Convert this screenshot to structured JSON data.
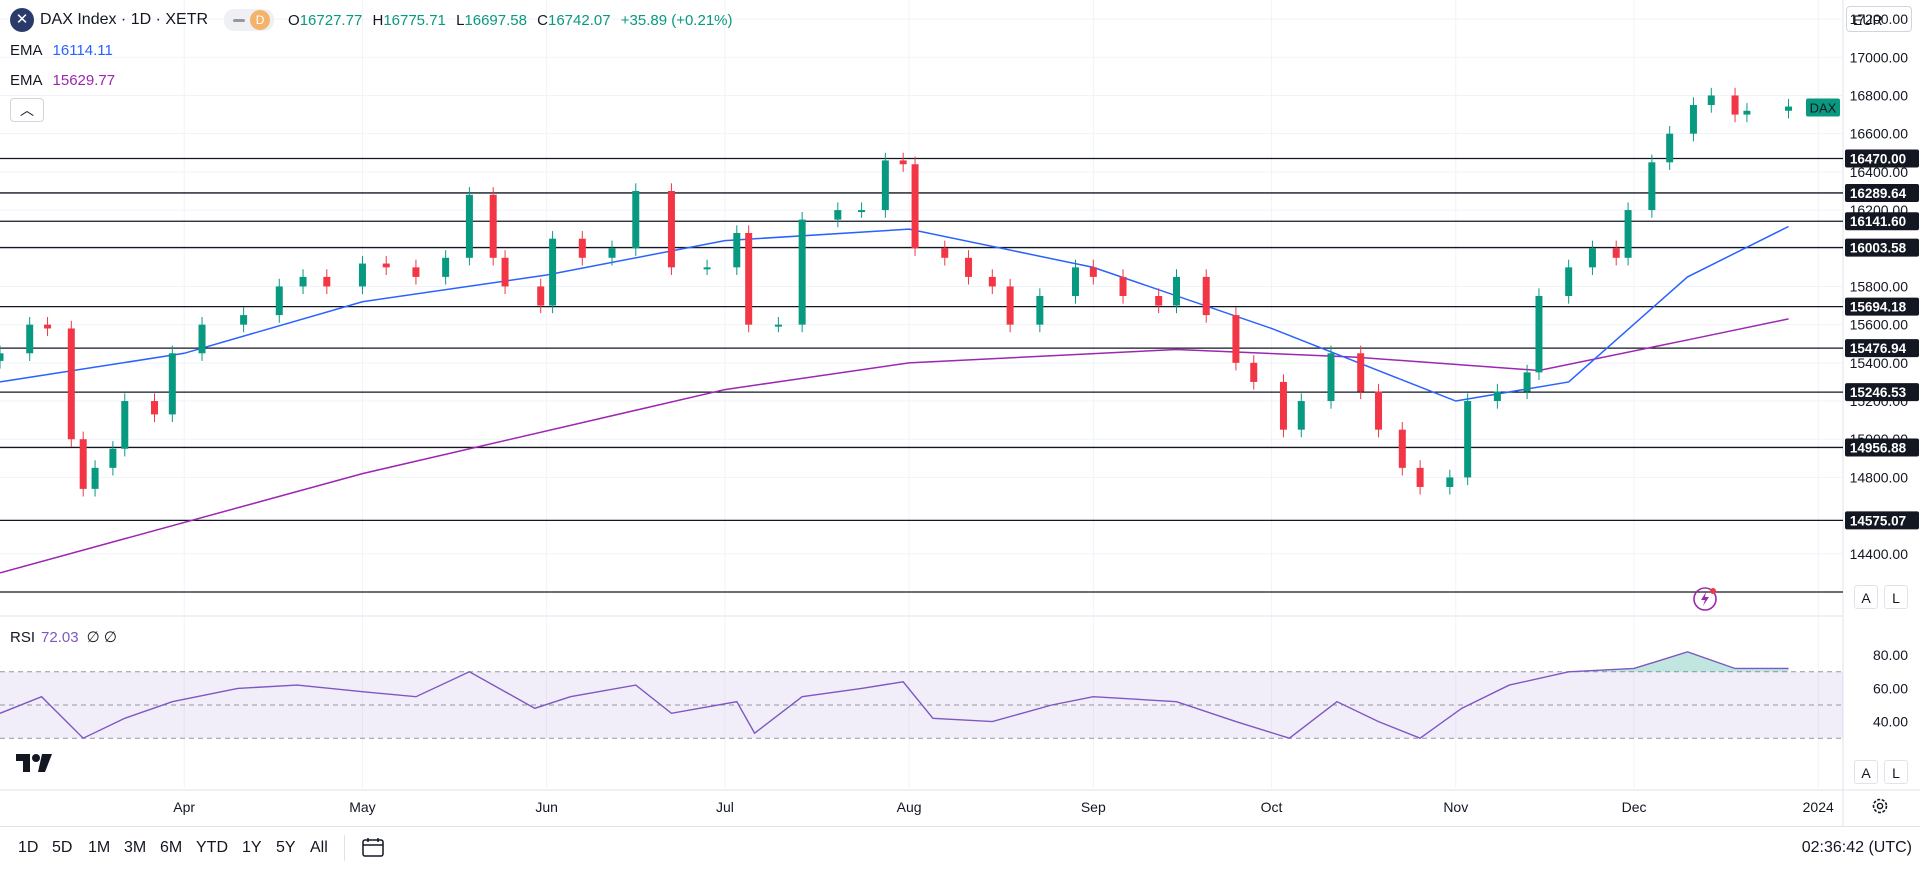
{
  "header": {
    "symbol": "DAX Index · 1D · XETR",
    "symbol_icon": "x-close-icon",
    "pill_letter": "D",
    "ohlc": {
      "o_label": "O",
      "o": "16727.77",
      "h_label": "H",
      "h": "16775.71",
      "l_label": "L",
      "l": "16697.58",
      "c_label": "C",
      "c": "16742.07",
      "change": "+35.89 (+0.21%)"
    }
  },
  "indicators": [
    {
      "label": "EMA",
      "value": "16114.11",
      "color": "#2962ff"
    },
    {
      "label": "EMA",
      "value": "15629.77",
      "color": "#9c27b0"
    }
  ],
  "rsi": {
    "label": "RSI",
    "value": "72.03",
    "extra1": "∅",
    "extra2": "∅"
  },
  "currency": "EUR",
  "axis_buttons": {
    "a": "A",
    "l": "L"
  },
  "price_tag": "DAX",
  "timeframes": [
    "1D",
    "5D",
    "1M",
    "3M",
    "6M",
    "YTD",
    "1Y",
    "5Y",
    "All"
  ],
  "clock": "02:36:42 (UTC)",
  "colors": {
    "up": "#089981",
    "down": "#f23645",
    "ema_fast": "#2962ff",
    "ema_slow": "#9c27b0",
    "rsi": "#7e57c2",
    "grid": "#f0f3fa"
  },
  "chart_data": [
    {
      "type": "candlestick",
      "title": "DAX Index · 1D · XETR",
      "ylim": [
        14200,
        17300
      ],
      "y_ticks": [
        "17200.00",
        "17000.00",
        "16800.00",
        "16600.00",
        "16400.00",
        "16200.00",
        "15800.00",
        "15600.00",
        "15400.00",
        "15200.00",
        "15000.00",
        "14800.00",
        "14400.00"
      ],
      "x_ticks": [
        "Apr",
        "May",
        "Jun",
        "Jul",
        "Aug",
        "Sep",
        "Oct",
        "Nov",
        "Dec",
        "2024"
      ],
      "x_range": [
        "2023-03-01",
        "2024-01-05"
      ],
      "horizontal_levels": [
        "16470.00",
        "16289.64",
        "16141.60",
        "16003.58",
        "15694.18",
        "15476.94",
        "15246.53",
        "14956.88",
        "14575.07"
      ],
      "bottom_line": 14200,
      "closes": [
        [
          "2023-03-01",
          15450
        ],
        [
          "2023-03-06",
          15600
        ],
        [
          "2023-03-09",
          15580
        ],
        [
          "2023-03-13",
          15000
        ],
        [
          "2023-03-15",
          14740
        ],
        [
          "2023-03-17",
          14850
        ],
        [
          "2023-03-20",
          14950
        ],
        [
          "2023-03-22",
          15200
        ],
        [
          "2023-03-27",
          15130
        ],
        [
          "2023-03-30",
          15450
        ],
        [
          "2023-04-04",
          15600
        ],
        [
          "2023-04-11",
          15650
        ],
        [
          "2023-04-17",
          15800
        ],
        [
          "2023-04-21",
          15850
        ],
        [
          "2023-04-25",
          15800
        ],
        [
          "2023-05-01",
          15920
        ],
        [
          "2023-05-05",
          15900
        ],
        [
          "2023-05-10",
          15850
        ],
        [
          "2023-05-15",
          15950
        ],
        [
          "2023-05-19",
          16280
        ],
        [
          "2023-05-23",
          15950
        ],
        [
          "2023-05-25",
          15800
        ],
        [
          "2023-05-31",
          15700
        ],
        [
          "2023-06-02",
          16050
        ],
        [
          "2023-06-07",
          15950
        ],
        [
          "2023-06-12",
          16000
        ],
        [
          "2023-06-16",
          16300
        ],
        [
          "2023-06-22",
          15900
        ],
        [
          "2023-06-28",
          15900
        ],
        [
          "2023-07-03",
          16080
        ],
        [
          "2023-07-05",
          15600
        ],
        [
          "2023-07-10",
          15600
        ],
        [
          "2023-07-14",
          16150
        ],
        [
          "2023-07-20",
          16200
        ],
        [
          "2023-07-24",
          16200
        ],
        [
          "2023-07-28",
          16460
        ],
        [
          "2023-07-31",
          16440
        ],
        [
          "2023-08-02",
          16000
        ],
        [
          "2023-08-07",
          15950
        ],
        [
          "2023-08-11",
          15850
        ],
        [
          "2023-08-15",
          15800
        ],
        [
          "2023-08-18",
          15600
        ],
        [
          "2023-08-23",
          15750
        ],
        [
          "2023-08-29",
          15900
        ],
        [
          "2023-09-01",
          15850
        ],
        [
          "2023-09-06",
          15750
        ],
        [
          "2023-09-12",
          15700
        ],
        [
          "2023-09-15",
          15850
        ],
        [
          "2023-09-20",
          15650
        ],
        [
          "2023-09-25",
          15400
        ],
        [
          "2023-09-28",
          15300
        ],
        [
          "2023-10-03",
          15050
        ],
        [
          "2023-10-06",
          15200
        ],
        [
          "2023-10-11",
          15450
        ],
        [
          "2023-10-16",
          15250
        ],
        [
          "2023-10-19",
          15050
        ],
        [
          "2023-10-23",
          14850
        ],
        [
          "2023-10-26",
          14750
        ],
        [
          "2023-10-31",
          14800
        ],
        [
          "2023-11-03",
          15200
        ],
        [
          "2023-11-08",
          15250
        ],
        [
          "2023-11-13",
          15350
        ],
        [
          "2023-11-15",
          15750
        ],
        [
          "2023-11-20",
          15900
        ],
        [
          "2023-11-24",
          16000
        ],
        [
          "2023-11-28",
          15950
        ],
        [
          "2023-11-30",
          16200
        ],
        [
          "2023-12-04",
          16450
        ],
        [
          "2023-12-07",
          16600
        ],
        [
          "2023-12-11",
          16750
        ],
        [
          "2023-12-14",
          16800
        ],
        [
          "2023-12-18",
          16700
        ],
        [
          "2023-12-20",
          16720
        ],
        [
          "2023-12-27",
          16742
        ]
      ],
      "ema_fast": [
        [
          "2023-03-01",
          15300
        ],
        [
          "2023-04-01",
          15450
        ],
        [
          "2023-05-01",
          15720
        ],
        [
          "2023-06-01",
          15860
        ],
        [
          "2023-07-01",
          16040
        ],
        [
          "2023-08-01",
          16100
        ],
        [
          "2023-09-01",
          15900
        ],
        [
          "2023-10-01",
          15580
        ],
        [
          "2023-11-01",
          15200
        ],
        [
          "2023-11-20",
          15300
        ],
        [
          "2023-12-10",
          15850
        ],
        [
          "2023-12-27",
          16114
        ]
      ],
      "ema_slow": [
        [
          "2023-03-01",
          14300
        ],
        [
          "2023-05-01",
          14820
        ],
        [
          "2023-07-01",
          15260
        ],
        [
          "2023-08-01",
          15400
        ],
        [
          "2023-09-15",
          15470
        ],
        [
          "2023-10-15",
          15430
        ],
        [
          "2023-11-15",
          15360
        ],
        [
          "2023-12-10",
          15520
        ],
        [
          "2023-12-27",
          15630
        ]
      ]
    },
    {
      "type": "line",
      "title": "RSI",
      "ylim": [
        0,
        100
      ],
      "y_ticks": [
        "80.00",
        "60.00",
        "40.00"
      ],
      "bands": [
        70,
        50,
        30
      ],
      "values": [
        [
          "2023-03-01",
          45
        ],
        [
          "2023-03-08",
          55
        ],
        [
          "2023-03-15",
          30
        ],
        [
          "2023-03-22",
          42
        ],
        [
          "2023-03-30",
          52
        ],
        [
          "2023-04-10",
          60
        ],
        [
          "2023-04-20",
          62
        ],
        [
          "2023-05-01",
          58
        ],
        [
          "2023-05-10",
          55
        ],
        [
          "2023-05-19",
          70
        ],
        [
          "2023-05-30",
          48
        ],
        [
          "2023-06-05",
          55
        ],
        [
          "2023-06-16",
          62
        ],
        [
          "2023-06-22",
          45
        ],
        [
          "2023-07-03",
          52
        ],
        [
          "2023-07-06",
          33
        ],
        [
          "2023-07-14",
          55
        ],
        [
          "2023-07-24",
          60
        ],
        [
          "2023-07-31",
          64
        ],
        [
          "2023-08-05",
          42
        ],
        [
          "2023-08-15",
          40
        ],
        [
          "2023-08-25",
          50
        ],
        [
          "2023-09-01",
          55
        ],
        [
          "2023-09-15",
          52
        ],
        [
          "2023-09-25",
          40
        ],
        [
          "2023-10-04",
          30
        ],
        [
          "2023-10-12",
          52
        ],
        [
          "2023-10-19",
          40
        ],
        [
          "2023-10-26",
          30
        ],
        [
          "2023-11-02",
          48
        ],
        [
          "2023-11-10",
          62
        ],
        [
          "2023-11-20",
          70
        ],
        [
          "2023-12-01",
          72
        ],
        [
          "2023-12-10",
          82
        ],
        [
          "2023-12-18",
          72
        ],
        [
          "2023-12-27",
          72
        ]
      ]
    }
  ]
}
